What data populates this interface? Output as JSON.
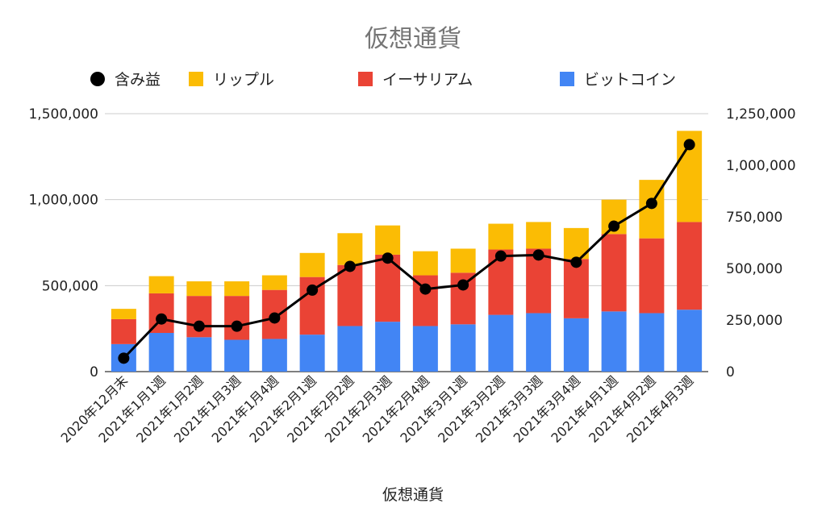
{
  "chart_data": {
    "type": "bar",
    "title": "仮想通貨",
    "xlabel": "仮想通貨",
    "ylabel": "",
    "stacked": true,
    "categories": [
      "2020年12月末",
      "2021年1月1週",
      "2021年1月2週",
      "2021年1月3週",
      "2021年1月4週",
      "2021年2月1週",
      "2021年2月2週",
      "2021年2月3週",
      "2021年2月4週",
      "2021年3月1週",
      "2021年3月2週",
      "2021年3月3週",
      "2021年3月4週",
      "2021年4月1週",
      "2021年4月2週",
      "2021年4月3週"
    ],
    "series": [
      {
        "name": "ビットコイン",
        "type": "bar",
        "axis": "left",
        "color": "#4285F4",
        "values": [
          160000,
          225000,
          200000,
          185000,
          190000,
          215000,
          265000,
          290000,
          265000,
          275000,
          330000,
          340000,
          310000,
          350000,
          340000,
          360000
        ]
      },
      {
        "name": "イーサリアム",
        "type": "bar",
        "axis": "left",
        "color": "#EA4335",
        "values": [
          145000,
          230000,
          240000,
          255000,
          285000,
          335000,
          355000,
          390000,
          295000,
          300000,
          380000,
          375000,
          345000,
          450000,
          435000,
          510000
        ]
      },
      {
        "name": "リップル",
        "type": "bar",
        "axis": "left",
        "color": "#FBBC04",
        "values": [
          60000,
          100000,
          85000,
          85000,
          85000,
          140000,
          185000,
          170000,
          140000,
          140000,
          150000,
          155000,
          180000,
          200000,
          340000,
          530000
        ]
      },
      {
        "name": "含み益",
        "type": "line",
        "axis": "right",
        "color": "#000000",
        "values": [
          65000,
          255000,
          220000,
          220000,
          260000,
          395000,
          510000,
          550000,
          400000,
          420000,
          560000,
          565000,
          530000,
          705000,
          815000,
          1100000
        ]
      }
    ],
    "ylim": [
      0,
      1500000
    ],
    "y_ticks": [
      "0",
      "500,000",
      "1,000,000",
      "1,500,000"
    ],
    "y2lim": [
      0,
      1250000
    ],
    "y2_ticks": [
      "0",
      "250,000",
      "500,000",
      "750,000",
      "1,000,000",
      "1,250,000"
    ],
    "legend_position": "top",
    "legend_order": [
      "含み益",
      "リップル",
      "イーサリアム",
      "ビットコイン"
    ],
    "grid": true
  }
}
